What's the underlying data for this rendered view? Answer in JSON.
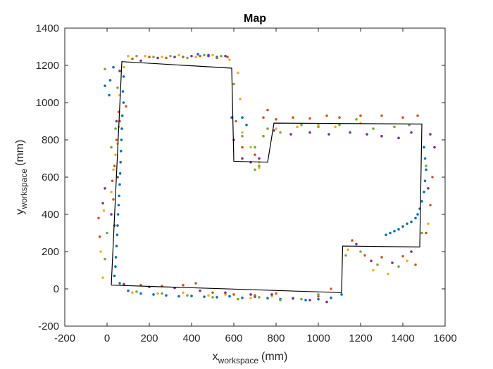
{
  "chart_data": {
    "type": "scatter",
    "title": "Map",
    "xlabel": {
      "main": "x",
      "subscript": "workspace",
      "unit": "(mm)"
    },
    "ylabel": {
      "main": "y",
      "subscript": "workspace",
      "unit": "(mm)"
    },
    "xlim": [
      -200,
      1600
    ],
    "ylim": [
      -200,
      1400
    ],
    "xticks": [
      -200,
      0,
      200,
      400,
      600,
      800,
      1000,
      1200,
      1400,
      1600
    ],
    "yticks": [
      -200,
      0,
      200,
      400,
      600,
      800,
      1000,
      1200,
      1400
    ],
    "grid": false,
    "colors": {
      "map_outline": "#000000",
      "series": [
        "#0072BD",
        "#D95319",
        "#EDB120",
        "#7E2F8E",
        "#77AC30"
      ]
    },
    "map_outline": [
      [
        20,
        20
      ],
      [
        70,
        1220
      ],
      [
        590,
        1185
      ],
      [
        600,
        685
      ],
      [
        760,
        680
      ],
      [
        790,
        890
      ],
      [
        1490,
        885
      ],
      [
        1480,
        225
      ],
      [
        1115,
        230
      ],
      [
        1110,
        -20
      ],
      [
        20,
        20
      ]
    ],
    "series": [
      {
        "points": [
          [
            35,
            70
          ],
          [
            40,
            120
          ],
          [
            42,
            170
          ],
          [
            45,
            230
          ],
          [
            48,
            290
          ],
          [
            50,
            340
          ],
          [
            52,
            400
          ],
          [
            55,
            450
          ],
          [
            57,
            500
          ],
          [
            60,
            560
          ],
          [
            62,
            620
          ],
          [
            64,
            680
          ],
          [
            66,
            740
          ],
          [
            68,
            800
          ],
          [
            70,
            860
          ],
          [
            72,
            930
          ],
          [
            78,
            1000
          ],
          [
            75,
            1060
          ],
          [
            78,
            1140
          ],
          [
            10,
            1040
          ],
          [
            15,
            1120
          ],
          [
            30,
            1190
          ],
          [
            -10,
            1090
          ],
          [
            60,
            30
          ],
          [
            100,
            -10
          ],
          [
            160,
            -25
          ],
          [
            220,
            -30
          ],
          [
            280,
            -35
          ],
          [
            340,
            -40
          ],
          [
            400,
            -38
          ],
          [
            460,
            -42
          ],
          [
            520,
            -45
          ],
          [
            580,
            -40
          ],
          [
            640,
            -48
          ],
          [
            700,
            -42
          ],
          [
            760,
            -50
          ],
          [
            820,
            -55
          ],
          [
            880,
            -52
          ],
          [
            940,
            -60
          ],
          [
            1000,
            -55
          ],
          [
            1060,
            -48
          ],
          [
            1110,
            -30
          ],
          [
            430,
            1260
          ],
          [
            480,
            1250
          ],
          [
            520,
            1245
          ],
          [
            640,
            920
          ],
          [
            660,
            880
          ],
          [
            590,
            920
          ],
          [
            1320,
            290
          ],
          [
            1340,
            300
          ],
          [
            1360,
            310
          ],
          [
            1380,
            320
          ],
          [
            1400,
            335
          ],
          [
            1420,
            350
          ],
          [
            1440,
            360
          ],
          [
            1460,
            380
          ],
          [
            1470,
            400
          ],
          [
            1480,
            430
          ],
          [
            1490,
            470
          ],
          [
            1500,
            520
          ],
          [
            1505,
            580
          ],
          [
            1510,
            640
          ],
          [
            1505,
            700
          ],
          [
            1500,
            760
          ]
        ]
      },
      {
        "points": [
          [
            -40,
            380
          ],
          [
            -35,
            280
          ],
          [
            30,
            480
          ],
          [
            25,
            580
          ],
          [
            35,
            660
          ],
          [
            45,
            800
          ],
          [
            60,
            900
          ],
          [
            55,
            950
          ],
          [
            90,
            980
          ],
          [
            120,
            1235
          ],
          [
            200,
            1245
          ],
          [
            280,
            1240
          ],
          [
            360,
            1245
          ],
          [
            440,
            1250
          ],
          [
            520,
            1240
          ],
          [
            570,
            1245
          ],
          [
            610,
            900
          ],
          [
            640,
            760
          ],
          [
            700,
            720
          ],
          [
            740,
            920
          ],
          [
            760,
            960
          ],
          [
            800,
            910
          ],
          [
            880,
            920
          ],
          [
            960,
            915
          ],
          [
            1040,
            930
          ],
          [
            1100,
            920
          ],
          [
            1200,
            930
          ],
          [
            1300,
            930
          ],
          [
            1400,
            920
          ],
          [
            1470,
            930
          ],
          [
            1160,
            260
          ],
          [
            1220,
            180
          ],
          [
            1300,
            170
          ],
          [
            1400,
            175
          ],
          [
            1460,
            130
          ],
          [
            1510,
            300
          ],
          [
            1530,
            450
          ],
          [
            1540,
            600
          ],
          [
            160,
            20
          ],
          [
            260,
            15
          ],
          [
            360,
            20
          ],
          [
            420,
            30
          ],
          [
            500,
            -20
          ],
          [
            600,
            -30
          ],
          [
            700,
            -35
          ],
          [
            800,
            -25
          ],
          [
            1000,
            -40
          ],
          [
            1060,
            0
          ]
        ]
      },
      {
        "points": [
          [
            -20,
            60
          ],
          [
            -30,
            200
          ],
          [
            -15,
            420
          ],
          [
            20,
            520
          ],
          [
            30,
            640
          ],
          [
            40,
            720
          ],
          [
            50,
            780
          ],
          [
            55,
            870
          ],
          [
            60,
            1040
          ],
          [
            80,
            1190
          ],
          [
            100,
            1250
          ],
          [
            180,
            1250
          ],
          [
            260,
            1245
          ],
          [
            340,
            1255
          ],
          [
            420,
            1245
          ],
          [
            500,
            1255
          ],
          [
            580,
            1230
          ],
          [
            620,
            1160
          ],
          [
            630,
            1020
          ],
          [
            640,
            840
          ],
          [
            680,
            760
          ],
          [
            720,
            680
          ],
          [
            720,
            650
          ],
          [
            800,
            860
          ],
          [
            900,
            870
          ],
          [
            1000,
            880
          ],
          [
            1080,
            870
          ],
          [
            1200,
            890
          ],
          [
            1140,
            210
          ],
          [
            1260,
            100
          ],
          [
            1330,
            80
          ],
          [
            1420,
            150
          ],
          [
            1520,
            350
          ],
          [
            120,
            -20
          ],
          [
            240,
            -25
          ],
          [
            360,
            -20
          ],
          [
            480,
            -35
          ],
          [
            560,
            -30
          ],
          [
            680,
            -50
          ],
          [
            780,
            -40
          ]
        ]
      },
      {
        "points": [
          [
            -10,
            540
          ],
          [
            -20,
            460
          ],
          [
            20,
            400
          ],
          [
            35,
            340
          ],
          [
            50,
            600
          ],
          [
            45,
            900
          ],
          [
            60,
            1170
          ],
          [
            160,
            1225
          ],
          [
            240,
            1240
          ],
          [
            320,
            1245
          ],
          [
            400,
            1250
          ],
          [
            480,
            1255
          ],
          [
            560,
            1250
          ],
          [
            600,
            800
          ],
          [
            640,
            700
          ],
          [
            680,
            680
          ],
          [
            720,
            700
          ],
          [
            790,
            850
          ],
          [
            870,
            830
          ],
          [
            960,
            840
          ],
          [
            1050,
            830
          ],
          [
            1150,
            840
          ],
          [
            1230,
            830
          ],
          [
            1300,
            820
          ],
          [
            1380,
            810
          ],
          [
            1440,
            840
          ],
          [
            1180,
            240
          ],
          [
            1250,
            150
          ],
          [
            1350,
            140
          ],
          [
            1440,
            200
          ],
          [
            1520,
            540
          ],
          [
            1550,
            760
          ],
          [
            1530,
            830
          ],
          [
            80,
            25
          ],
          [
            200,
            10
          ],
          [
            320,
            5
          ],
          [
            440,
            -10
          ],
          [
            560,
            -20
          ],
          [
            680,
            -30
          ],
          [
            780,
            -30
          ],
          [
            880,
            -50
          ],
          [
            960,
            -60
          ],
          [
            1040,
            -70
          ]
        ]
      },
      {
        "points": [
          [
            -10,
            160
          ],
          [
            0,
            300
          ],
          [
            20,
            760
          ],
          [
            40,
            860
          ],
          [
            50,
            1080
          ],
          [
            -10,
            1180
          ],
          [
            140,
            1250
          ],
          [
            220,
            1245
          ],
          [
            300,
            1250
          ],
          [
            380,
            1240
          ],
          [
            460,
            1255
          ],
          [
            540,
            1250
          ],
          [
            600,
            1100
          ],
          [
            640,
            820
          ],
          [
            700,
            760
          ],
          [
            740,
            820
          ],
          [
            760,
            860
          ],
          [
            700,
            640
          ],
          [
            720,
            660
          ],
          [
            820,
            840
          ],
          [
            920,
            880
          ],
          [
            1000,
            870
          ],
          [
            1100,
            880
          ],
          [
            1180,
            910
          ],
          [
            1260,
            860
          ],
          [
            1360,
            870
          ],
          [
            1430,
            880
          ],
          [
            1130,
            180
          ],
          [
            1200,
            200
          ],
          [
            1280,
            130
          ],
          [
            1380,
            120
          ],
          [
            1490,
            300
          ],
          [
            1510,
            660
          ],
          [
            140,
            -15
          ],
          [
            260,
            -25
          ],
          [
            380,
            -35
          ],
          [
            500,
            -45
          ],
          [
            620,
            -55
          ],
          [
            720,
            -45
          ],
          [
            820,
            -60
          ],
          [
            920,
            -55
          ],
          [
            1000,
            -30
          ]
        ]
      }
    ]
  }
}
